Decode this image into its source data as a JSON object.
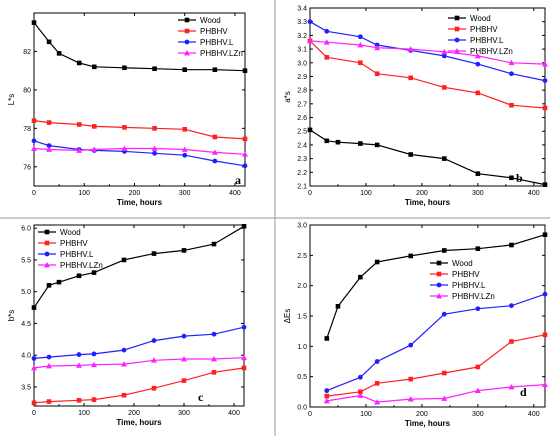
{
  "chart_data": [
    {
      "type": "line",
      "panel_label": "a",
      "xlabel": "Time, hours",
      "ylabel": "L*s",
      "xlim": [
        0,
        420
      ],
      "ylim": [
        75,
        84
      ],
      "xticks": [
        0,
        100,
        200,
        300,
        400
      ],
      "yticks": [
        76,
        78,
        80,
        82
      ],
      "legend_position": "top-right",
      "series": [
        {
          "name": "Wood",
          "color": "#000000",
          "marker": "square",
          "x": [
            0,
            30,
            50,
            90,
            120,
            180,
            240,
            300,
            360,
            420
          ],
          "y": [
            83.5,
            82.5,
            81.9,
            81.4,
            81.2,
            81.15,
            81.1,
            81.05,
            81.05,
            81.0
          ]
        },
        {
          "name": "PHBHV",
          "color": "#ff2020",
          "marker": "square",
          "x": [
            0,
            30,
            90,
            120,
            180,
            240,
            300,
            360,
            420
          ],
          "y": [
            78.4,
            78.3,
            78.2,
            78.1,
            78.05,
            78.0,
            77.95,
            77.55,
            77.45
          ]
        },
        {
          "name": "PHBHV.L",
          "color": "#2020ff",
          "marker": "circle",
          "x": [
            0,
            30,
            90,
            120,
            180,
            240,
            300,
            360,
            420
          ],
          "y": [
            77.35,
            77.1,
            76.9,
            76.85,
            76.8,
            76.7,
            76.6,
            76.3,
            76.05
          ]
        },
        {
          "name": "PHBHV.LZn",
          "color": "#ff20ff",
          "marker": "triangle",
          "x": [
            0,
            30,
            90,
            120,
            180,
            240,
            300,
            360,
            420
          ],
          "y": [
            76.95,
            76.9,
            76.85,
            76.9,
            76.95,
            76.95,
            76.9,
            76.75,
            76.65
          ]
        }
      ]
    },
    {
      "type": "line",
      "panel_label": "b",
      "xlabel": "Time, hours",
      "ylabel": "a*s",
      "xlim": [
        0,
        420
      ],
      "ylim": [
        2.1,
        3.4
      ],
      "xticks": [
        0,
        100,
        200,
        300,
        400
      ],
      "yticks": [
        2.1,
        2.2,
        2.3,
        2.4,
        2.5,
        2.6,
        2.7,
        2.8,
        2.9,
        3.0,
        3.1,
        3.2,
        3.3,
        3.4
      ],
      "legend_position": "top-right",
      "series": [
        {
          "name": "Wood",
          "color": "#000000",
          "marker": "square",
          "x": [
            0,
            30,
            50,
            90,
            120,
            180,
            240,
            300,
            360,
            420
          ],
          "y": [
            2.51,
            2.43,
            2.42,
            2.41,
            2.4,
            2.33,
            2.3,
            2.19,
            2.16,
            2.11
          ]
        },
        {
          "name": "PHBHV",
          "color": "#ff2020",
          "marker": "square",
          "x": [
            0,
            30,
            90,
            120,
            180,
            240,
            300,
            360,
            420
          ],
          "y": [
            3.16,
            3.04,
            3.0,
            2.92,
            2.89,
            2.82,
            2.78,
            2.69,
            2.67
          ]
        },
        {
          "name": "PHBHV.L",
          "color": "#2020ff",
          "marker": "circle",
          "x": [
            0,
            30,
            90,
            120,
            180,
            240,
            300,
            360,
            420
          ],
          "y": [
            3.3,
            3.23,
            3.19,
            3.13,
            3.09,
            3.05,
            2.99,
            2.92,
            2.87
          ]
        },
        {
          "name": "PHBHV.LZn",
          "color": "#ff20ff",
          "marker": "triangle",
          "x": [
            0,
            30,
            90,
            120,
            180,
            240,
            300,
            360,
            420
          ],
          "y": [
            3.16,
            3.15,
            3.13,
            3.11,
            3.1,
            3.08,
            3.05,
            3.0,
            2.99
          ]
        }
      ]
    },
    {
      "type": "line",
      "panel_label": "c",
      "xlabel": "Time, hours",
      "ylabel": "b*s",
      "xlim": [
        0,
        420
      ],
      "ylim": [
        3.2,
        6.05
      ],
      "xticks": [
        0,
        100,
        200,
        300,
        400
      ],
      "yticks": [
        3.5,
        4.0,
        4.5,
        5.0,
        5.5,
        6.0
      ],
      "legend_position": "top-left",
      "series": [
        {
          "name": "Wood",
          "color": "#000000",
          "marker": "square",
          "x": [
            0,
            30,
            50,
            90,
            120,
            180,
            240,
            300,
            360,
            420
          ],
          "y": [
            4.75,
            5.1,
            5.15,
            5.25,
            5.3,
            5.5,
            5.6,
            5.65,
            5.75,
            6.03
          ]
        },
        {
          "name": "PHBHV",
          "color": "#ff2020",
          "marker": "square",
          "x": [
            0,
            30,
            90,
            120,
            180,
            240,
            300,
            360,
            420
          ],
          "y": [
            3.25,
            3.27,
            3.29,
            3.3,
            3.37,
            3.48,
            3.6,
            3.73,
            3.8
          ]
        },
        {
          "name": "PHBHV.L",
          "color": "#2020ff",
          "marker": "circle",
          "x": [
            0,
            30,
            90,
            120,
            180,
            240,
            300,
            360,
            420
          ],
          "y": [
            3.95,
            3.97,
            4.01,
            4.02,
            4.08,
            4.23,
            4.3,
            4.33,
            4.44
          ]
        },
        {
          "name": "PHBHV.LZn",
          "color": "#ff20ff",
          "marker": "triangle",
          "x": [
            0,
            30,
            90,
            120,
            180,
            240,
            300,
            360,
            420
          ],
          "y": [
            3.8,
            3.83,
            3.84,
            3.85,
            3.86,
            3.92,
            3.94,
            3.94,
            3.96
          ]
        }
      ]
    },
    {
      "type": "line",
      "panel_label": "d",
      "xlabel": "Time, hours",
      "ylabel": "ΔEs",
      "xlim": [
        0,
        420
      ],
      "ylim": [
        0,
        3.0
      ],
      "xticks": [
        0,
        100,
        200,
        300,
        400
      ],
      "yticks": [
        0.0,
        0.5,
        1.0,
        1.5,
        2.0,
        2.5,
        3.0
      ],
      "legend_position": "center-right",
      "series": [
        {
          "name": "Wood",
          "color": "#000000",
          "marker": "square",
          "x": [
            30,
            50,
            90,
            120,
            180,
            240,
            300,
            360,
            420
          ],
          "y": [
            1.13,
            1.66,
            2.14,
            2.39,
            2.49,
            2.58,
            2.61,
            2.67,
            2.84
          ]
        },
        {
          "name": "PHBHV",
          "color": "#ff2020",
          "marker": "square",
          "x": [
            30,
            90,
            120,
            180,
            240,
            300,
            360,
            420
          ],
          "y": [
            0.18,
            0.25,
            0.39,
            0.46,
            0.56,
            0.66,
            1.08,
            1.19
          ]
        },
        {
          "name": "PHBHV.L",
          "color": "#2020ff",
          "marker": "circle",
          "x": [
            30,
            90,
            120,
            180,
            240,
            300,
            360,
            420
          ],
          "y": [
            0.27,
            0.49,
            0.75,
            1.02,
            1.53,
            1.62,
            1.67,
            1.86
          ]
        },
        {
          "name": "PHBHV.LZn",
          "color": "#ff20ff",
          "marker": "triangle",
          "x": [
            30,
            90,
            120,
            180,
            240,
            300,
            360,
            420
          ],
          "y": [
            0.1,
            0.19,
            0.08,
            0.13,
            0.14,
            0.27,
            0.33,
            0.37
          ]
        }
      ]
    }
  ]
}
